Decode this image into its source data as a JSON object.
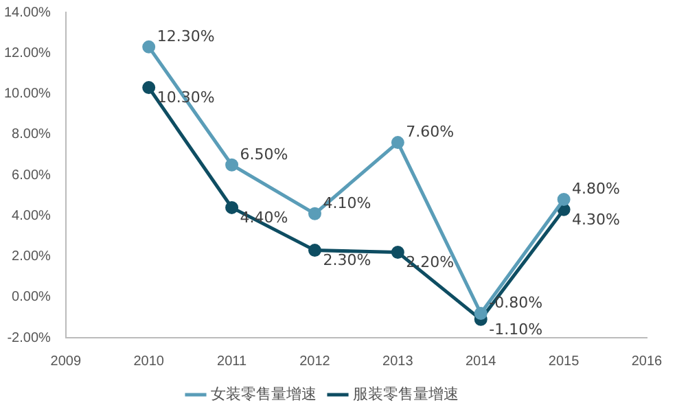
{
  "chart_data": {
    "type": "line",
    "x": [
      2010,
      2011,
      2012,
      2013,
      2014,
      2015
    ],
    "series": [
      {
        "name": "女装零售量增速",
        "color": "#5a9db8",
        "values": [
          12.3,
          6.5,
          4.1,
          7.6,
          -0.8,
          4.8
        ],
        "value_labels": [
          "12.30%",
          "6.50%",
          "4.10%",
          "7.60%",
          "-0.80%",
          "4.80%"
        ]
      },
      {
        "name": "服装零售量增速",
        "color": "#0e4d62",
        "values": [
          10.3,
          4.4,
          2.3,
          2.2,
          -1.1,
          4.3
        ],
        "value_labels": [
          "10.30%",
          "4.40%",
          "2.30%",
          "2.20%",
          "-1.10%",
          "4.30%"
        ]
      }
    ],
    "xlim": [
      2009,
      2016
    ],
    "xticks": [
      2009,
      2010,
      2011,
      2012,
      2013,
      2014,
      2015,
      2016
    ],
    "ylim": [
      -2,
      14
    ],
    "yticks": [
      {
        "value": -2,
        "label": "-2.00%"
      },
      {
        "value": 0,
        "label": "0.00%"
      },
      {
        "value": 2,
        "label": "2.00%"
      },
      {
        "value": 4,
        "label": "4.00%"
      },
      {
        "value": 6,
        "label": "6.00%"
      },
      {
        "value": 8,
        "label": "8.00%"
      },
      {
        "value": 10,
        "label": "10.00%"
      },
      {
        "value": 12,
        "label": "12.00%"
      },
      {
        "value": 14,
        "label": "14.00%"
      }
    ],
    "grid": false,
    "legend": "bottom",
    "marker": "circle",
    "line_style": "solid"
  }
}
